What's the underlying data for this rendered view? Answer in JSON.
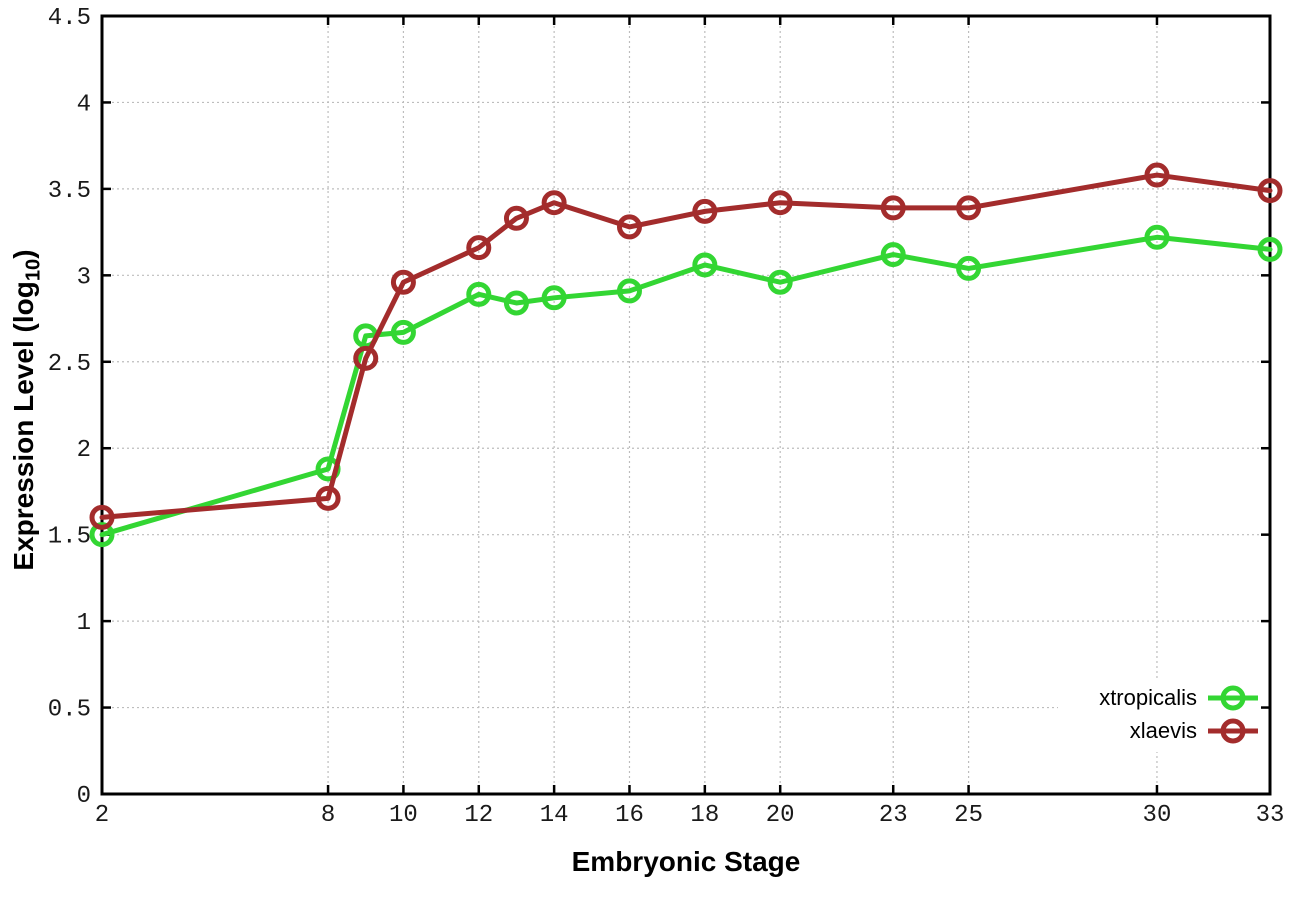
{
  "chart_data": {
    "type": "line",
    "title": "",
    "xlabel": "Embryonic Stage",
    "ylabel": {
      "prefix": "Expression Level (log",
      "subscript": "10",
      "suffix": ")"
    },
    "x": [
      2,
      8,
      9,
      10,
      12,
      13,
      14,
      16,
      18,
      20,
      23,
      25,
      30,
      33
    ],
    "xticks": [
      2,
      8,
      10,
      12,
      14,
      16,
      18,
      20,
      23,
      25,
      30,
      33
    ],
    "yticks": [
      0,
      0.5,
      1,
      1.5,
      2,
      2.5,
      3,
      3.5,
      4,
      4.5
    ],
    "xlim": [
      2,
      33
    ],
    "ylim": [
      0,
      4.5
    ],
    "grid": true,
    "legend_position": "inside-bottom-right",
    "marker": "open-circle",
    "axis_color": "#000000",
    "grid_color": "#bdbdbd",
    "series": [
      {
        "name": "xtropicalis",
        "color": "#33d633",
        "values": [
          1.5,
          1.88,
          2.65,
          2.67,
          2.89,
          2.84,
          2.87,
          2.91,
          3.06,
          2.96,
          3.12,
          3.04,
          3.22,
          3.15
        ]
      },
      {
        "name": "xlaevis",
        "color": "#a32c2c",
        "values": [
          1.6,
          1.71,
          2.52,
          2.96,
          3.16,
          3.33,
          3.42,
          3.28,
          3.37,
          3.42,
          3.39,
          3.39,
          3.58,
          3.49
        ]
      }
    ]
  }
}
